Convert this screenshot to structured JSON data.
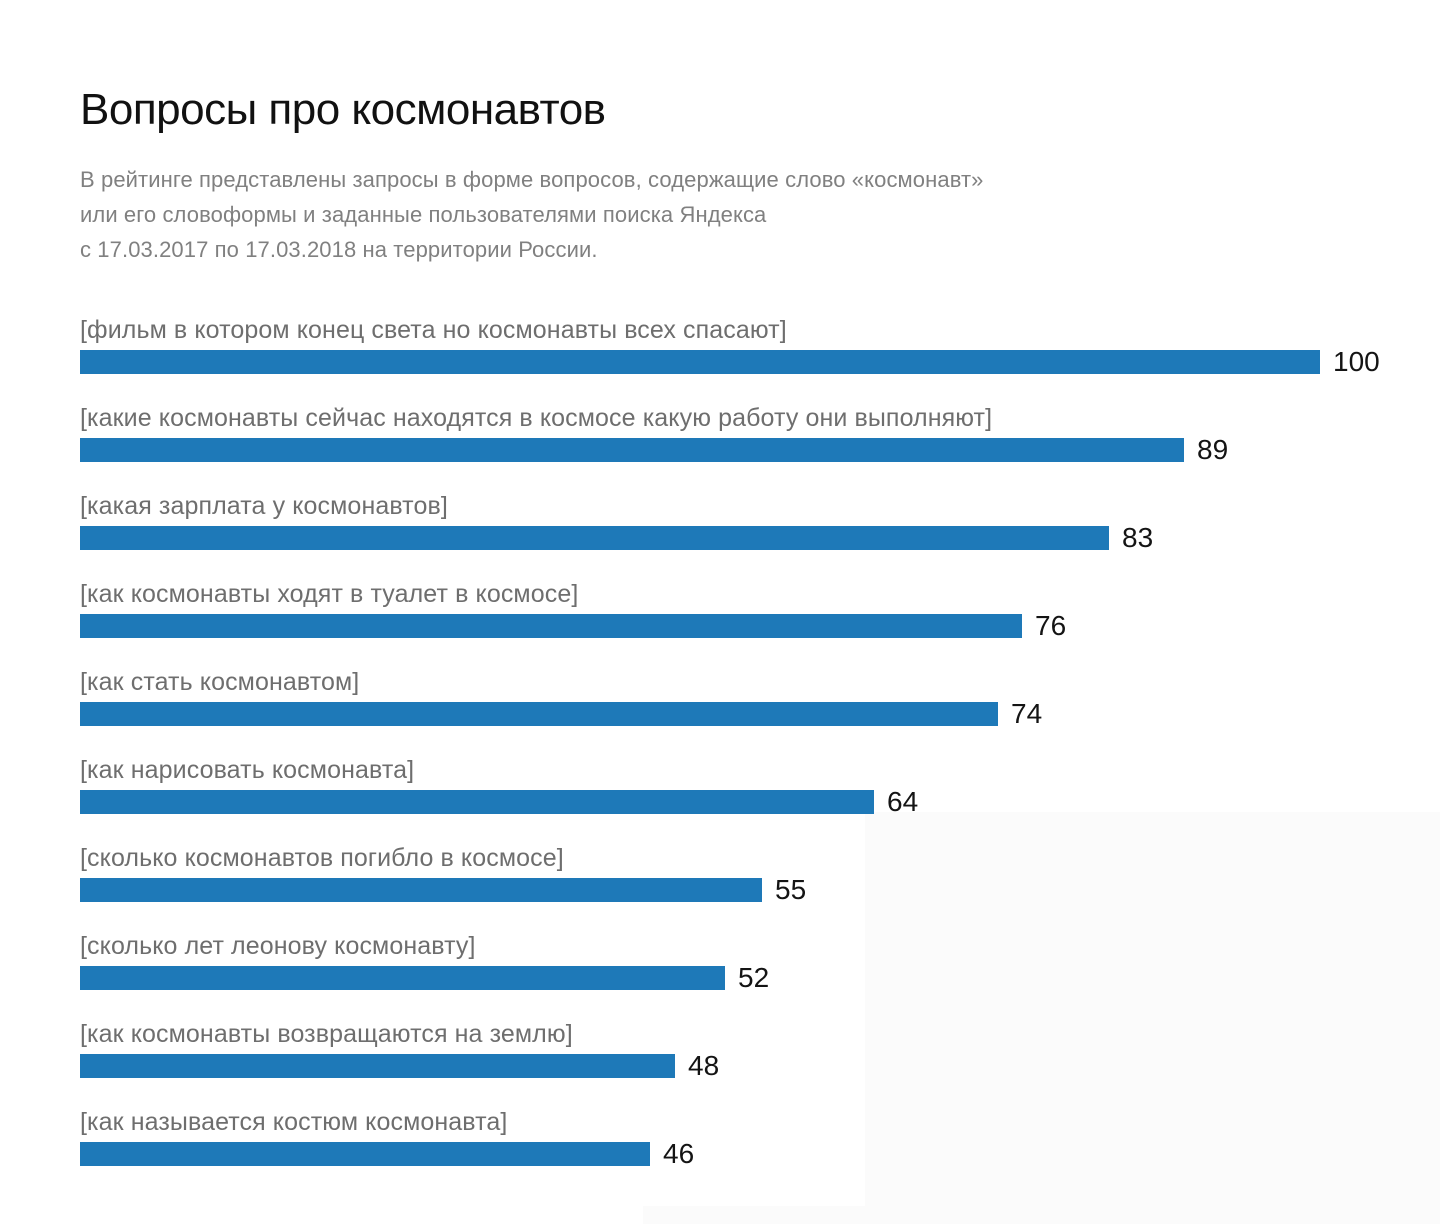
{
  "page": {
    "title": "Вопросы про космонавтов",
    "subtitle_lines": [
      "В рейтинге представлены запросы в форме вопросов, содержащие слово «космонавт»",
      "или его словоформы и заданные пользователями поиска Яндекса",
      "с 17.03.2017 по 17.03.2018 на территории России."
    ]
  },
  "colors": {
    "bar": "#1e79b8",
    "title": "#111111",
    "subtitle": "#808080",
    "label": "#6e6e6e",
    "value": "#141414",
    "artifact": "#fbfbfb"
  },
  "chart_data": {
    "type": "bar",
    "orientation": "horizontal",
    "title": "Вопросы про космонавтов",
    "categories": [
      "[фильм в котором конец света но космонавты всех спасают]",
      "[какие космонавты сейчас находятся в космосе какую работу они выполняют]",
      "[какая зарплата у космонавтов]",
      "[как космонавты ходят в туалет в космосе]",
      "[как стать космонавтом]",
      "[как нарисовать космонавта]",
      "[сколько космонавтов погибло в космосе]",
      "[сколько лет леонову космонавту]",
      "[как космонавты возвращаются на землю]",
      "[как называется костюм космонавта]"
    ],
    "values": [
      100,
      89,
      83,
      76,
      74,
      64,
      55,
      52,
      48,
      46
    ],
    "xlim": [
      0,
      100
    ],
    "bar_color": "#1e79b8",
    "value_labels_shown": true,
    "grid": false,
    "legend": false,
    "xlabel": "",
    "ylabel": ""
  }
}
